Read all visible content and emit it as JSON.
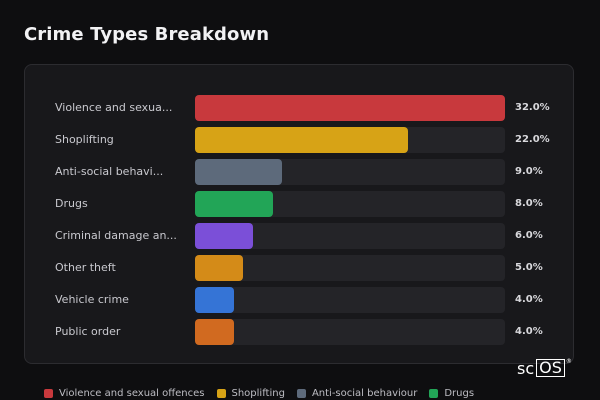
{
  "chart_title": "Crime Types Breakdown",
  "chart_data": {
    "type": "bar",
    "orientation": "horizontal",
    "title": "Crime Types Breakdown",
    "categories": [
      "Violence and sexua...",
      "Shoplifting",
      "Anti-social behavi...",
      "Drugs",
      "Criminal damage an...",
      "Other theft",
      "Vehicle crime",
      "Public order"
    ],
    "values": [
      32.0,
      22.0,
      9.0,
      8.0,
      6.0,
      5.0,
      4.0,
      4.0
    ],
    "value_labels": [
      "32.0%",
      "22.0%",
      "9.0%",
      "8.0%",
      "6.0%",
      "5.0%",
      "4.0%",
      "4.0%"
    ],
    "colors": [
      "#c8393d",
      "#d7a316",
      "#5d6a7b",
      "#22a557",
      "#7b4fd8",
      "#d48b18",
      "#3574d6",
      "#d16a20"
    ],
    "xlim": [
      0,
      32
    ],
    "legend": {
      "placement": "bottom",
      "entries": [
        {
          "label": "Violence and sexual offences",
          "color": "#c8393d"
        },
        {
          "label": "Shoplifting",
          "color": "#d7a316"
        },
        {
          "label": "Anti-social behaviour",
          "color": "#5d6a7b"
        },
        {
          "label": "Drugs",
          "color": "#22a557"
        }
      ]
    }
  },
  "logo": {
    "text_a": "sc",
    "text_b": "OS",
    "mark": "®"
  }
}
